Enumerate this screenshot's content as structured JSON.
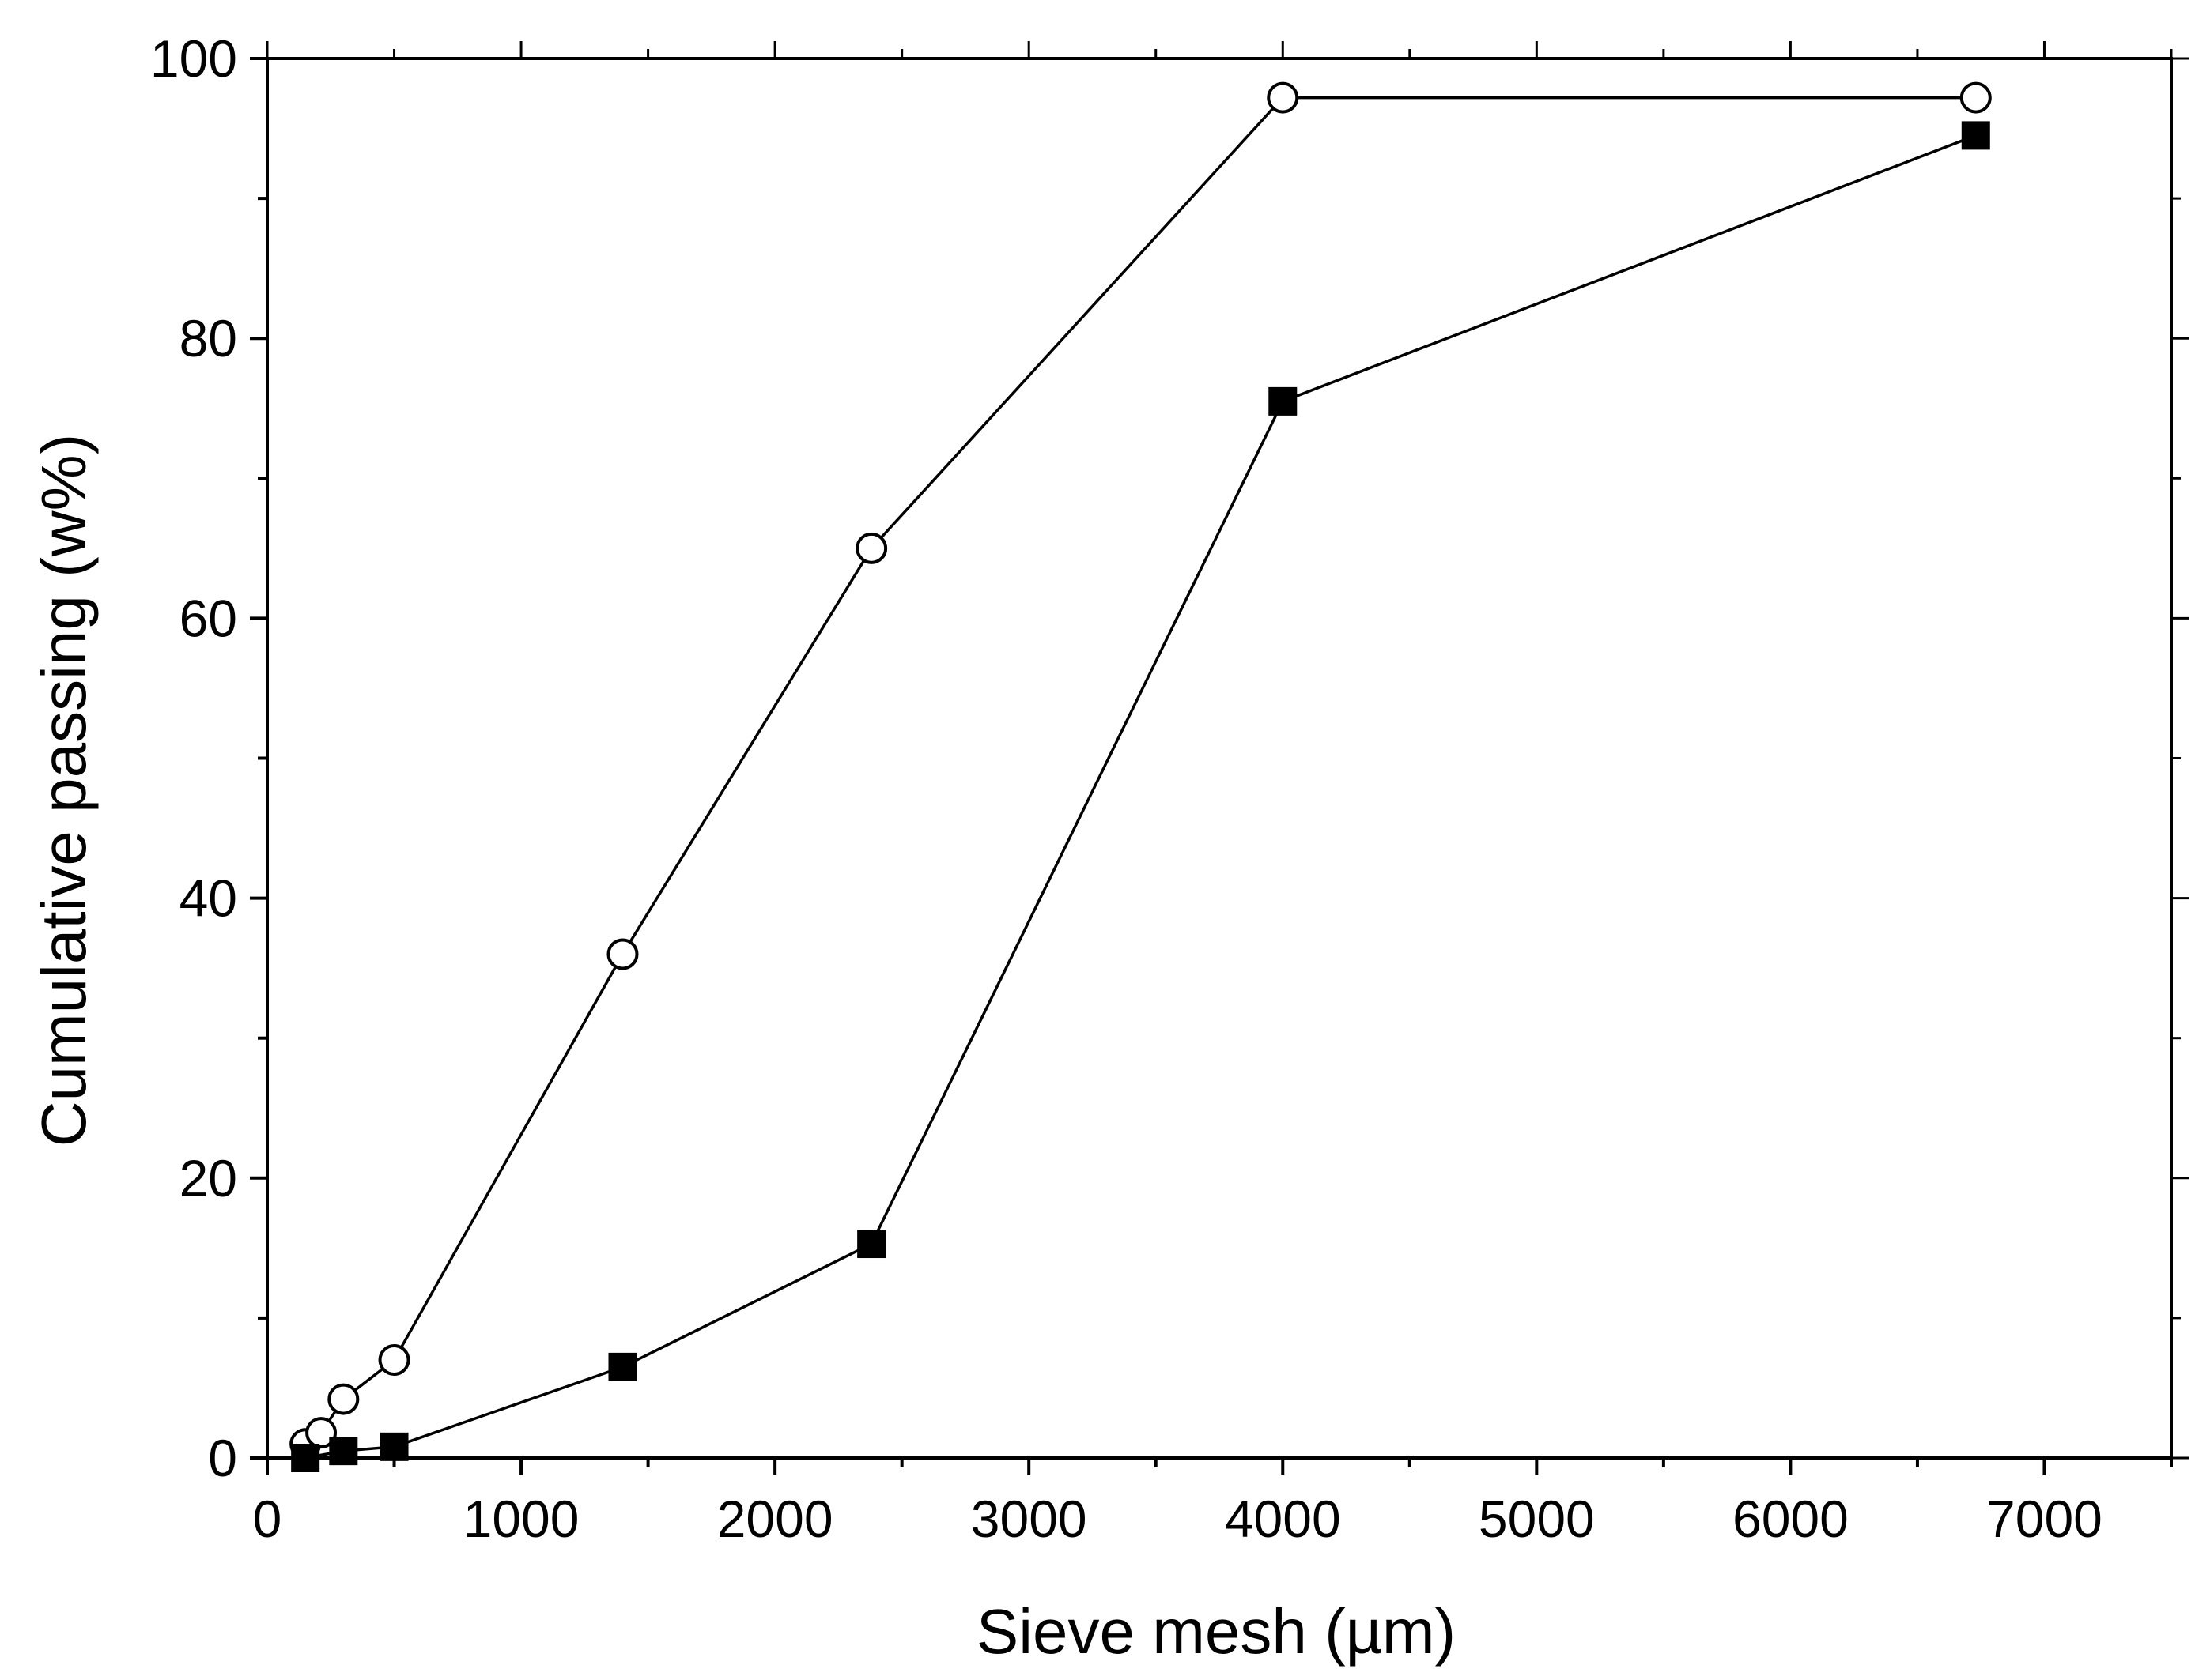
{
  "chart_data": {
    "type": "line",
    "xlabel": "Sieve mesh (µm)",
    "ylabel": "Cumulative passing (w%)",
    "xlim": [
      0,
      7500
    ],
    "ylim": [
      0,
      100
    ],
    "x_ticks": [
      0,
      1000,
      2000,
      3000,
      4000,
      5000,
      6000,
      7000
    ],
    "x_tick_labels": [
      "0",
      "1000",
      "2000",
      "3000",
      "4000",
      "5000",
      "6000",
      "7000"
    ],
    "y_ticks": [
      0,
      20,
      40,
      60,
      80,
      100
    ],
    "y_tick_labels": [
      "0",
      "20",
      "40",
      "60",
      "80",
      "100"
    ],
    "grid": false,
    "legend": "none",
    "series": [
      {
        "marker": "open-circle",
        "color": "#000000",
        "points": [
          {
            "x": 150,
            "y": 1.0
          },
          {
            "x": 212,
            "y": 1.8
          },
          {
            "x": 300,
            "y": 4.2
          },
          {
            "x": 500,
            "y": 7.0
          },
          {
            "x": 1400,
            "y": 36.0
          },
          {
            "x": 2380,
            "y": 65.0
          },
          {
            "x": 4000,
            "y": 97.2
          },
          {
            "x": 6730,
            "y": 97.2
          }
        ]
      },
      {
        "marker": "filled-square",
        "color": "#000000",
        "points": [
          {
            "x": 150,
            "y": 0.0
          },
          {
            "x": 300,
            "y": 0.5
          },
          {
            "x": 500,
            "y": 0.8
          },
          {
            "x": 1400,
            "y": 6.5
          },
          {
            "x": 2380,
            "y": 15.3
          },
          {
            "x": 4000,
            "y": 75.5
          },
          {
            "x": 6730,
            "y": 94.5
          }
        ]
      }
    ]
  }
}
